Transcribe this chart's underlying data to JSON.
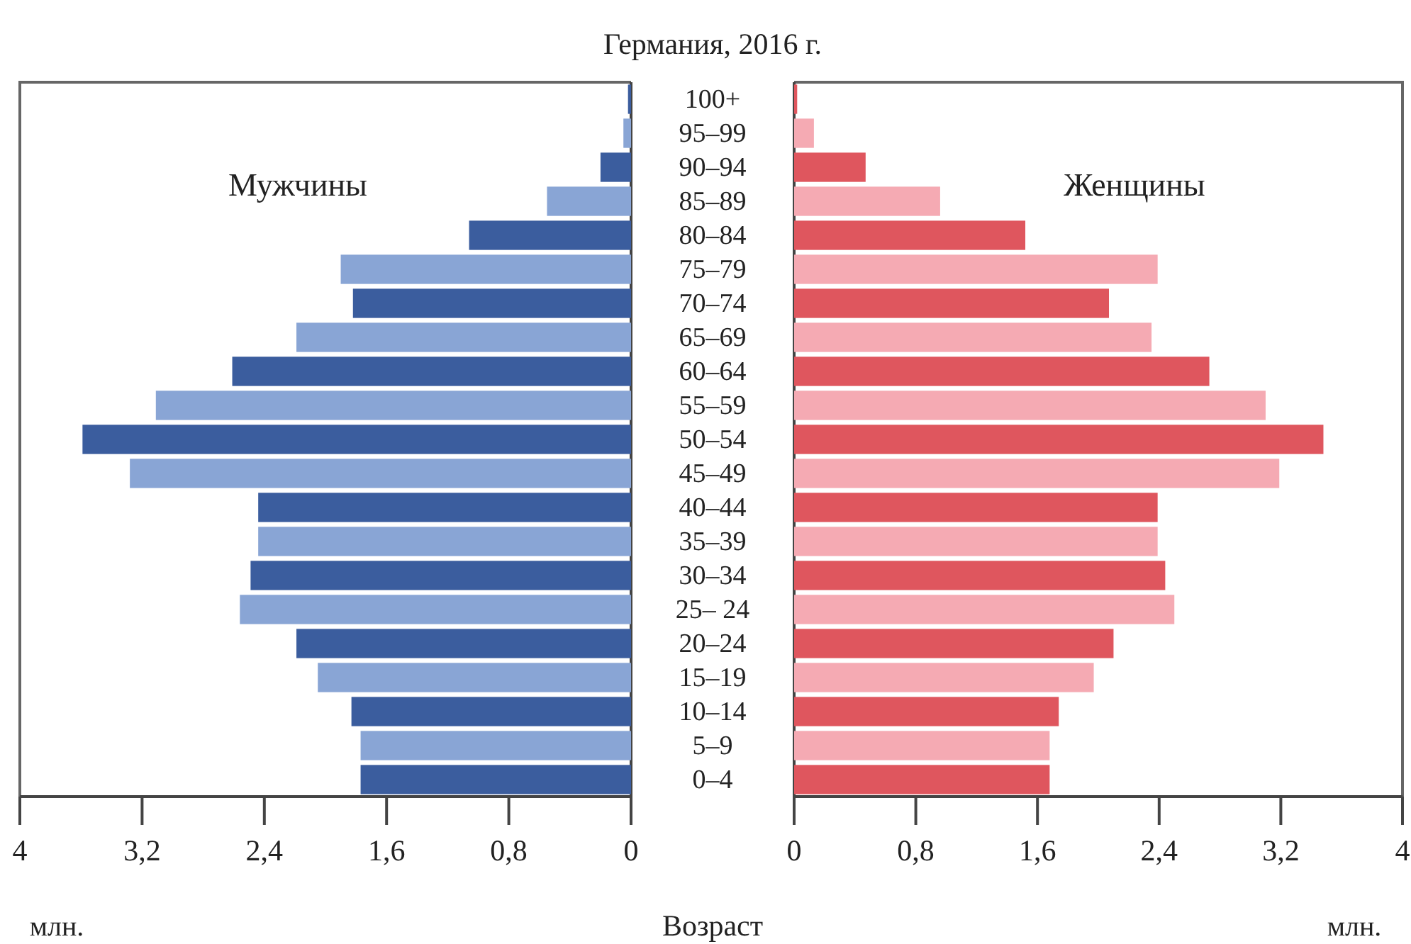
{
  "chart_data": [
    {
      "type": "bar",
      "orientation": "horizontal",
      "title": "Германия, 2016 г.",
      "xlabel": "млн.",
      "ylabel": "Возраст",
      "annotations": [
        "Мужчины"
      ],
      "categories": [
        "100+",
        "95–99",
        "90–94",
        "85–89",
        "80–84",
        "75–79",
        "70–74",
        "65–69",
        "60–64",
        "55–59",
        "50–54",
        "45–49",
        "40–44",
        "35–39",
        "30–34",
        "25– 24",
        "20–24",
        "15–19",
        "10–14",
        "5–9",
        "0–4"
      ],
      "values": [
        0.02,
        0.05,
        0.2,
        0.55,
        1.06,
        1.9,
        1.82,
        2.19,
        2.61,
        3.11,
        3.59,
        3.28,
        2.44,
        2.44,
        2.49,
        2.56,
        2.19,
        2.05,
        1.83,
        1.77,
        1.77
      ],
      "colors": [
        "#3b5d9e",
        "#89a5d5",
        "#3b5d9e",
        "#89a5d5",
        "#3b5d9e",
        "#89a5d5",
        "#3b5d9e",
        "#89a5d5",
        "#3b5d9e",
        "#89a5d5",
        "#3b5d9e",
        "#89a5d5",
        "#3b5d9e",
        "#89a5d5",
        "#3b5d9e",
        "#89a5d5",
        "#3b5d9e",
        "#89a5d5",
        "#3b5d9e",
        "#89a5d5",
        "#3b5d9e"
      ],
      "xlim": [
        4,
        0
      ],
      "xticks": [
        {
          "value": 4,
          "label": "4"
        },
        {
          "value": 3.2,
          "label": "3,2"
        },
        {
          "value": 2.4,
          "label": "2,4"
        },
        {
          "value": 1.6,
          "label": "1,6"
        },
        {
          "value": 0.8,
          "label": "0,8"
        },
        {
          "value": 0,
          "label": "0"
        }
      ]
    },
    {
      "type": "bar",
      "orientation": "horizontal",
      "xlabel": "млн.",
      "annotations": [
        "Женщины"
      ],
      "tick_labels": "x",
      "categories": [
        "100+",
        "95–99",
        "90–94",
        "85–89",
        "80–84",
        "75–79",
        "70–74",
        "65–69",
        "60–64",
        "55–59",
        "50–54",
        "45–49",
        "40–44",
        "35–39",
        "30–34",
        "25– 24",
        "20–24",
        "15–19",
        "10–14",
        "5–9",
        "0–4"
      ],
      "values": [
        0.02,
        0.13,
        0.47,
        0.96,
        1.52,
        2.39,
        2.07,
        2.35,
        2.73,
        3.1,
        3.48,
        3.19,
        2.39,
        2.39,
        2.44,
        2.5,
        2.1,
        1.97,
        1.74,
        1.68,
        1.68
      ],
      "colors": [
        "#df565e",
        "#f5aab3",
        "#df565e",
        "#f5aab3",
        "#df565e",
        "#f5aab3",
        "#df565e",
        "#f5aab3",
        "#df565e",
        "#f5aab3",
        "#df565e",
        "#f5aab3",
        "#df565e",
        "#f5aab3",
        "#df565e",
        "#f5aab3",
        "#df565e",
        "#f5aab3",
        "#df565e",
        "#f5aab3",
        "#df565e"
      ],
      "xlim": [
        0,
        4
      ],
      "xticks": [
        {
          "value": 0,
          "label": "0"
        },
        {
          "value": 0.8,
          "label": "0,8"
        },
        {
          "value": 1.6,
          "label": "1,6"
        },
        {
          "value": 2.4,
          "label": "2,4"
        },
        {
          "value": 3.2,
          "label": "3,2"
        },
        {
          "value": 4,
          "label": "4"
        }
      ]
    }
  ]
}
